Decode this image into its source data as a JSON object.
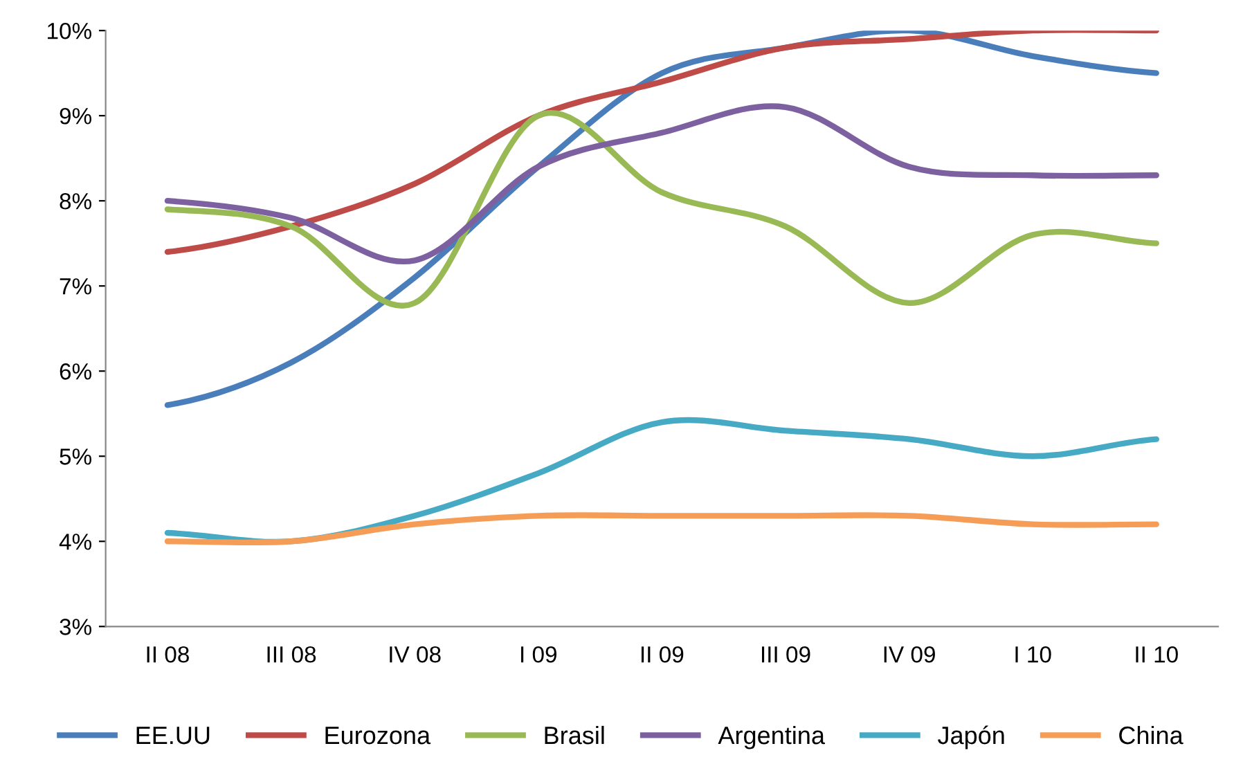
{
  "chart_data": {
    "type": "line",
    "categories": [
      "II 08",
      "III 08",
      "IV 08",
      "I 09",
      "II 09",
      "III 09",
      "IV 09",
      "I 10",
      "II 10"
    ],
    "series": [
      {
        "name": "EE.UU",
        "color": "#4a7ebb",
        "values": [
          5.6,
          6.1,
          7.1,
          8.4,
          9.5,
          9.8,
          10.0,
          9.7,
          9.5
        ]
      },
      {
        "name": "Eurozona",
        "color": "#be4b48",
        "values": [
          7.4,
          7.7,
          8.2,
          9.0,
          9.4,
          9.8,
          9.9,
          10.0,
          10.0
        ]
      },
      {
        "name": "Brasil",
        "color": "#98b954",
        "values": [
          7.9,
          7.7,
          6.8,
          9.0,
          8.1,
          7.7,
          6.8,
          7.6,
          7.5
        ]
      },
      {
        "name": "Argentina",
        "color": "#7d60a0",
        "values": [
          8.0,
          7.8,
          7.3,
          8.4,
          8.8,
          9.1,
          8.4,
          8.3,
          8.3
        ]
      },
      {
        "name": "Japón",
        "color": "#46aac5",
        "values": [
          4.1,
          4.0,
          4.3,
          4.8,
          5.4,
          5.3,
          5.2,
          5.0,
          5.2
        ]
      },
      {
        "name": "China",
        "color": "#f59d56",
        "values": [
          4.0,
          4.0,
          4.2,
          4.3,
          4.3,
          4.3,
          4.3,
          4.2,
          4.2
        ]
      }
    ],
    "ylim": [
      3,
      10
    ],
    "yticks": [
      {
        "value": 3,
        "label": "3%"
      },
      {
        "value": 4,
        "label": "4%"
      },
      {
        "value": 5,
        "label": "5%"
      },
      {
        "value": 6,
        "label": "6%"
      },
      {
        "value": 7,
        "label": "7%"
      },
      {
        "value": 8,
        "label": "8%"
      },
      {
        "value": 9,
        "label": "9%"
      },
      {
        "value": 10,
        "label": "10%"
      }
    ],
    "grid": false,
    "legend": "bottom",
    "marker": "none",
    "line_style": "solid"
  }
}
